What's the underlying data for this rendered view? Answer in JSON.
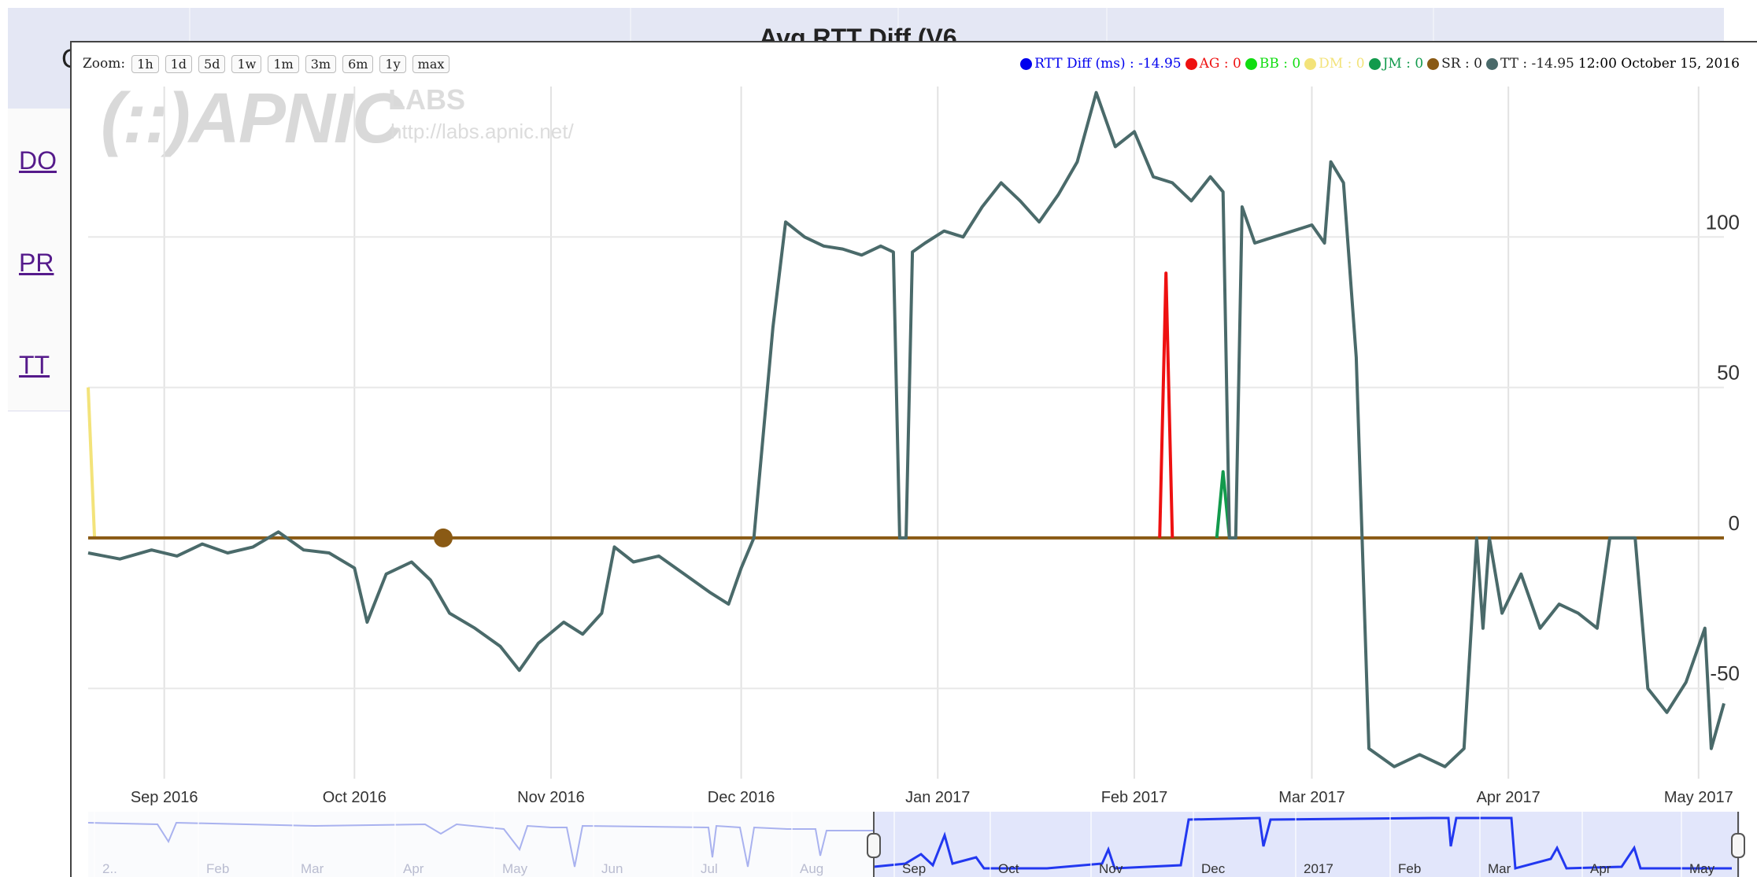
{
  "background_page": {
    "title": "Avg RTT Diff (V6",
    "hidden_letter": "C",
    "row_links": [
      "DO",
      "PR",
      "TT"
    ]
  },
  "zoom": {
    "label": "Zoom:",
    "buttons": [
      "1h",
      "1d",
      "5d",
      "1w",
      "1m",
      "3m",
      "6m",
      "1y",
      "max"
    ]
  },
  "legend": {
    "items": [
      {
        "name": "RTT Diff (ms)",
        "text": "RTT Diff (ms) : -14.95",
        "color": "#0000ee"
      },
      {
        "name": "AG",
        "text": "AG : 0",
        "color": "#ee1111"
      },
      {
        "name": "BB",
        "text": "BB : 0",
        "color": "#11dd11"
      },
      {
        "name": "DM",
        "text": "DM : 0",
        "color": "#f3e37a"
      },
      {
        "name": "JM",
        "text": "JM : 0",
        "color": "#129a4c"
      },
      {
        "name": "SR",
        "text": "SR : 0",
        "color": "#8a5a14"
      },
      {
        "name": "TT",
        "text": "TT : -14.95",
        "color": "#4a6a6a"
      }
    ],
    "timestamp": "12:00 October 15, 2016"
  },
  "watermark": {
    "logo": "(::)APNIC",
    "labs": "LABS",
    "url": "http://labs.apnic.net/"
  },
  "chart_data": {
    "type": "line",
    "title": "",
    "xlabel": "",
    "ylabel": "",
    "x_start": "2016-08-20",
    "x_end": "2017-05-05",
    "ylim": [
      -80,
      150
    ],
    "yticks": [
      -50,
      0,
      50,
      100
    ],
    "xticks": [
      {
        "label": "Sep 2016",
        "date": "2016-09-01"
      },
      {
        "label": "Oct 2016",
        "date": "2016-10-01"
      },
      {
        "label": "Nov 2016",
        "date": "2016-11-01"
      },
      {
        "label": "Dec 2016",
        "date": "2016-12-01"
      },
      {
        "label": "Jan 2017",
        "date": "2017-01-01"
      },
      {
        "label": "Feb 2017",
        "date": "2017-02-01"
      },
      {
        "label": "Mar 2017",
        "date": "2017-03-01"
      },
      {
        "label": "Apr 2017",
        "date": "2017-04-01"
      },
      {
        "label": "May 2017",
        "date": "2017-05-01"
      }
    ],
    "grid": true,
    "legend_position": "top-right",
    "series": [
      {
        "name": "TT",
        "color": "#4a6a6a",
        "points": [
          [
            "2016-08-20",
            -5
          ],
          [
            "2016-08-25",
            -7
          ],
          [
            "2016-08-30",
            -4
          ],
          [
            "2016-09-03",
            -6
          ],
          [
            "2016-09-07",
            -2
          ],
          [
            "2016-09-11",
            -5
          ],
          [
            "2016-09-15",
            -3
          ],
          [
            "2016-09-19",
            2
          ],
          [
            "2016-09-23",
            -4
          ],
          [
            "2016-09-27",
            -5
          ],
          [
            "2016-10-01",
            -10
          ],
          [
            "2016-10-03",
            -28
          ],
          [
            "2016-10-06",
            -12
          ],
          [
            "2016-10-10",
            -8
          ],
          [
            "2016-10-13",
            -14
          ],
          [
            "2016-10-16",
            -25
          ],
          [
            "2016-10-20",
            -30
          ],
          [
            "2016-10-24",
            -36
          ],
          [
            "2016-10-27",
            -44
          ],
          [
            "2016-10-30",
            -35
          ],
          [
            "2016-11-03",
            -28
          ],
          [
            "2016-11-06",
            -32
          ],
          [
            "2016-11-09",
            -25
          ],
          [
            "2016-11-11",
            -3
          ],
          [
            "2016-11-14",
            -8
          ],
          [
            "2016-11-18",
            -6
          ],
          [
            "2016-11-22",
            -12
          ],
          [
            "2016-11-26",
            -18
          ],
          [
            "2016-11-29",
            -22
          ],
          [
            "2016-12-01",
            -10
          ],
          [
            "2016-12-03",
            0
          ],
          [
            "2016-12-06",
            70
          ],
          [
            "2016-12-08",
            105
          ],
          [
            "2016-12-11",
            100
          ],
          [
            "2016-12-14",
            97
          ],
          [
            "2016-12-17",
            96
          ],
          [
            "2016-12-20",
            94
          ],
          [
            "2016-12-23",
            97
          ],
          [
            "2016-12-25",
            95
          ],
          [
            "2016-12-26",
            0
          ],
          [
            "2016-12-27",
            0
          ],
          [
            "2016-12-28",
            95
          ],
          [
            "2016-12-30",
            98
          ],
          [
            "2017-01-02",
            102
          ],
          [
            "2017-01-05",
            100
          ],
          [
            "2017-01-08",
            110
          ],
          [
            "2017-01-11",
            118
          ],
          [
            "2017-01-14",
            112
          ],
          [
            "2017-01-17",
            105
          ],
          [
            "2017-01-20",
            114
          ],
          [
            "2017-01-23",
            125
          ],
          [
            "2017-01-26",
            148
          ],
          [
            "2017-01-29",
            130
          ],
          [
            "2017-02-01",
            135
          ],
          [
            "2017-02-04",
            120
          ],
          [
            "2017-02-07",
            118
          ],
          [
            "2017-02-10",
            112
          ],
          [
            "2017-02-13",
            120
          ],
          [
            "2017-02-15",
            115
          ],
          [
            "2017-02-16",
            0
          ],
          [
            "2017-02-17",
            0
          ],
          [
            "2017-02-18",
            110
          ],
          [
            "2017-02-20",
            98
          ],
          [
            "2017-02-23",
            100
          ],
          [
            "2017-02-26",
            102
          ],
          [
            "2017-03-01",
            104
          ],
          [
            "2017-03-03",
            98
          ],
          [
            "2017-03-04",
            125
          ],
          [
            "2017-03-06",
            118
          ],
          [
            "2017-03-08",
            60
          ],
          [
            "2017-03-10",
            -70
          ],
          [
            "2017-03-14",
            -76
          ],
          [
            "2017-03-18",
            -72
          ],
          [
            "2017-03-22",
            -76
          ],
          [
            "2017-03-25",
            -70
          ],
          [
            "2017-03-27",
            0
          ],
          [
            "2017-03-28",
            -30
          ],
          [
            "2017-03-29",
            0
          ],
          [
            "2017-03-31",
            -25
          ],
          [
            "2017-04-03",
            -12
          ],
          [
            "2017-04-06",
            -30
          ],
          [
            "2017-04-09",
            -22
          ],
          [
            "2017-04-12",
            -25
          ],
          [
            "2017-04-15",
            -30
          ],
          [
            "2017-04-17",
            0
          ],
          [
            "2017-04-21",
            0
          ],
          [
            "2017-04-23",
            -50
          ],
          [
            "2017-04-26",
            -58
          ],
          [
            "2017-04-29",
            -48
          ],
          [
            "2017-05-02",
            -30
          ],
          [
            "2017-05-03",
            -70
          ],
          [
            "2017-05-05",
            -55
          ]
        ]
      },
      {
        "name": "SR",
        "color": "#8a5a14",
        "points": [
          [
            "2016-08-20",
            0
          ],
          [
            "2017-05-05",
            0
          ]
        ]
      },
      {
        "name": "AG",
        "color": "#ee1111",
        "points": [
          [
            "2017-02-05",
            0
          ],
          [
            "2017-02-06",
            88
          ],
          [
            "2017-02-07",
            0
          ]
        ]
      },
      {
        "name": "JM",
        "color": "#129a4c",
        "points": [
          [
            "2017-02-14",
            0
          ],
          [
            "2017-02-15",
            22
          ],
          [
            "2017-02-16",
            0
          ]
        ]
      },
      {
        "name": "DM",
        "color": "#f3e37a",
        "points": [
          [
            "2016-08-20",
            50
          ],
          [
            "2016-08-21",
            0
          ]
        ]
      }
    ],
    "marker": {
      "series": "SR",
      "date": "2016-10-15",
      "value": 0
    }
  },
  "navigator": {
    "labels": [
      "2..",
      "Feb",
      "Mar",
      "Apr",
      "May",
      "Jun",
      "Jul",
      "Aug",
      "Sep",
      "Oct",
      "Nov",
      "Dec",
      "2017",
      "Feb",
      "Mar",
      "Apr",
      "May"
    ]
  }
}
